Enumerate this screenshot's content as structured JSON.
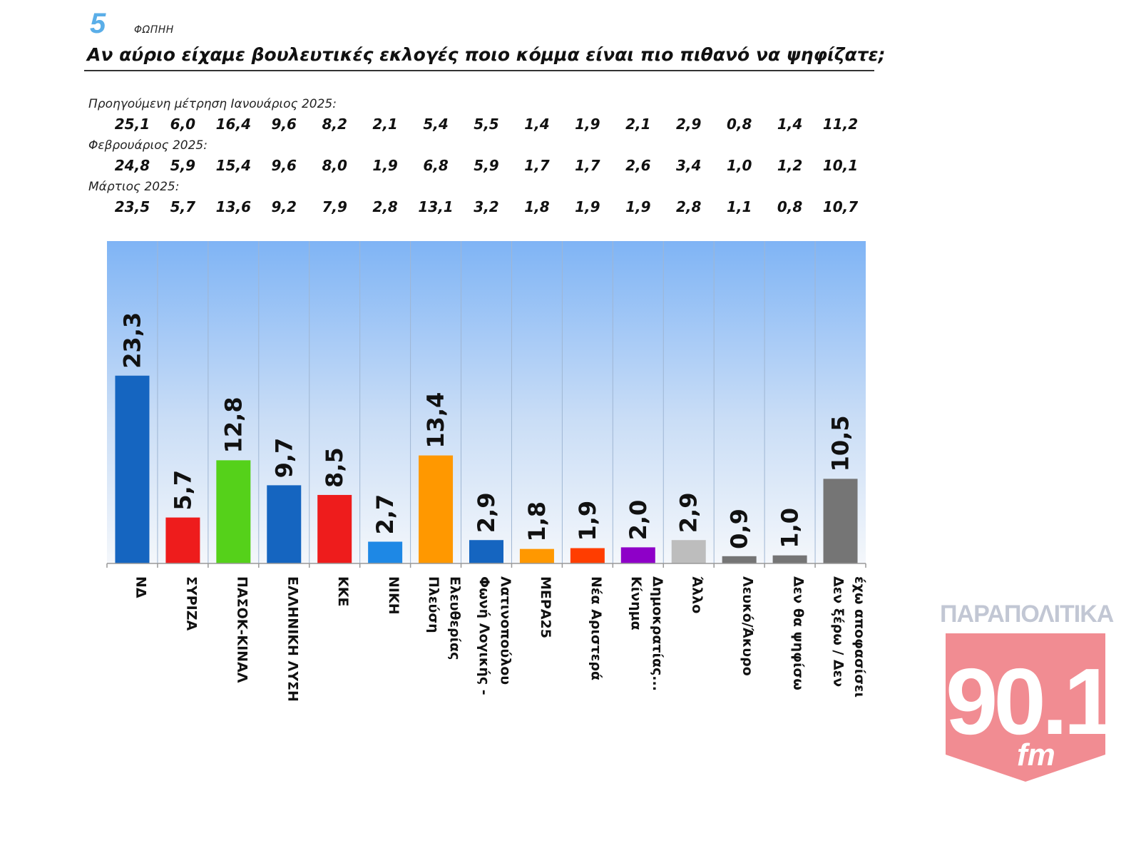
{
  "header": {
    "logo_number": "5",
    "logo_word": "ΦΩΠΗΗ",
    "title": "Αν αύριο είχαμε βουλευτικές εκλογές ποιο κόμμα είναι πιο πιθανό να ψηφίζατε;"
  },
  "previous": [
    {
      "label": "Προηγούμενη μέτρηση Ιανουάριος 2025:",
      "values": [
        "25,1",
        "6,0",
        "16,4",
        "9,6",
        "8,2",
        "2,1",
        "5,4",
        "5,5",
        "1,4",
        "1,9",
        "2,1",
        "2,9",
        "0,8",
        "1,4",
        "11,2"
      ]
    },
    {
      "label": "Φεβρουάριος 2025:",
      "values": [
        "24,8",
        "5,9",
        "15,4",
        "9,6",
        "8,0",
        "1,9",
        "6,8",
        "5,9",
        "1,7",
        "1,7",
        "2,6",
        "3,4",
        "1,0",
        "1,2",
        "10,1"
      ]
    },
    {
      "label": "Μάρτιος 2025:",
      "values": [
        "23,5",
        "5,7",
        "13,6",
        "9,2",
        "7,9",
        "2,8",
        "13,1",
        "3,2",
        "1,8",
        "1,9",
        "1,9",
        "2,8",
        "1,1",
        "0,8",
        "10,7"
      ]
    }
  ],
  "chart_data": {
    "type": "bar",
    "title": "",
    "xlabel": "",
    "ylabel": "",
    "categories": [
      [
        "ΝΔ"
      ],
      [
        "ΣΥΡΙΖΑ"
      ],
      [
        "ΠΑΣΟΚ-ΚΙΝΑΛ"
      ],
      [
        "ΕΛΛΗΝΙΚΗ ΛΥΣΗ"
      ],
      [
        "ΚΚΕ"
      ],
      [
        "ΝΙΚΗ"
      ],
      [
        "Πλεύση",
        "Ελευθερίας"
      ],
      [
        "Φωνή Λογικής -",
        "Λατινοπούλου"
      ],
      [
        "ΜΕΡΑ25"
      ],
      [
        "Νέα Αριστερά"
      ],
      [
        "Κίνημα",
        "Δημοκρατίας..."
      ],
      [
        "Άλλο"
      ],
      [
        "Λευκό/Άκυρο"
      ],
      [
        "Δεν θα ψηφίσω"
      ],
      [
        "Δεν ξέρω / Δεν",
        "έχω αποφασίσει"
      ]
    ],
    "values": [
      23.3,
      5.7,
      12.8,
      9.7,
      8.5,
      2.7,
      13.4,
      2.9,
      1.8,
      1.9,
      2.0,
      2.9,
      0.9,
      1.0,
      10.5
    ],
    "value_labels": [
      "23,3",
      "5,7",
      "12,8",
      "9,7",
      "8,5",
      "2,7",
      "13,4",
      "2,9",
      "1,8",
      "1,9",
      "2,0",
      "2,9",
      "0,9",
      "1,0",
      "10,5"
    ],
    "colors": [
      "#1565c0",
      "#ee1c1c",
      "#55d11a",
      "#1565c0",
      "#ee1c1c",
      "#1e88e5",
      "#ff9800",
      "#1565c0",
      "#ff9800",
      "#ff3d00",
      "#8e00c8",
      "#bdbdbd",
      "#757575",
      "#757575",
      "#757575"
    ],
    "ylim": [
      0,
      40
    ],
    "grid": false,
    "background": "gradient light blue"
  },
  "watermark": {
    "top_text": "ΠΑΡΑΠΟΛΙΤΙΚΑ",
    "number": "90.1",
    "unit": "fm"
  }
}
